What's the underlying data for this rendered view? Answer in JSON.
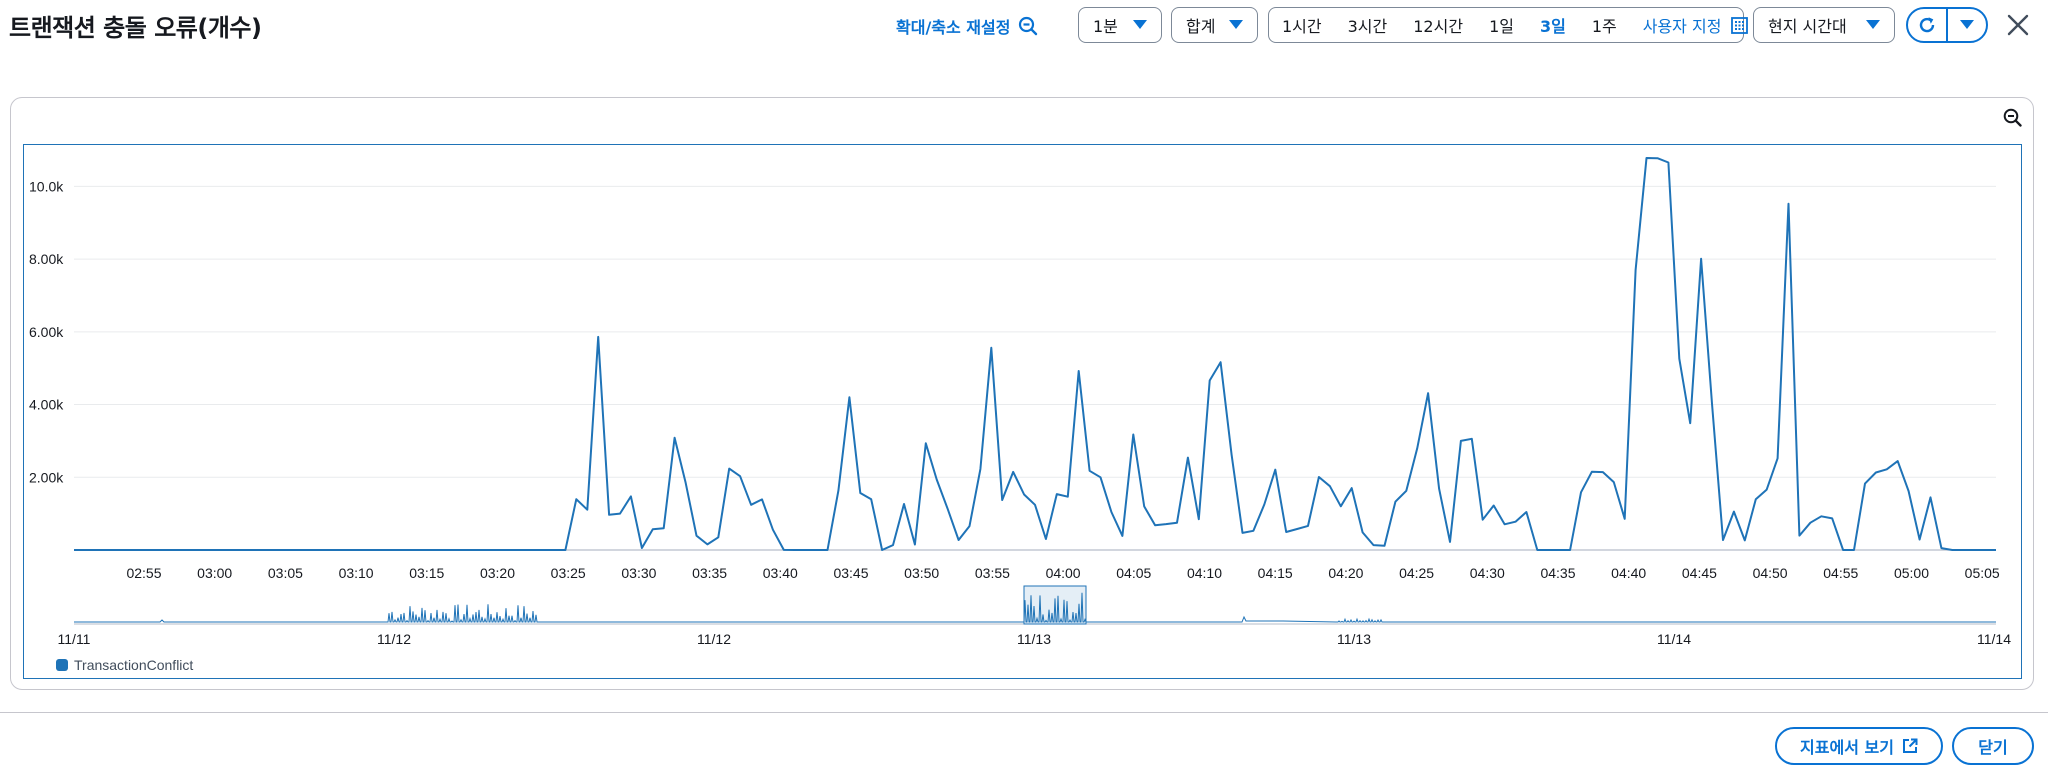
{
  "header": {
    "title": "트랜잭션 충돌 오류(개수)",
    "reset_zoom_label": "확대/축소 재설정",
    "period_select": "1분",
    "statistic_select": "합계",
    "time_ranges": [
      "1시간",
      "3시간",
      "12시간",
      "1일",
      "3일",
      "1주"
    ],
    "active_range": "3일",
    "custom_range_label": "사용자 지정",
    "timezone_select": "현지 시간대"
  },
  "footer": {
    "view_in_metrics_label": "지표에서 보기",
    "close_label": "닫기"
  },
  "colors": {
    "accent": "#0972d3",
    "series": "#1f73b7",
    "grid": "#e9ebed"
  },
  "chart_data": {
    "type": "line",
    "title": "",
    "series": [
      {
        "name": "TransactionConflict",
        "values": [
          0,
          0,
          0,
          0,
          0,
          0,
          0,
          0,
          0,
          0,
          0,
          0,
          0,
          0,
          0,
          0,
          0,
          0,
          0,
          0,
          0,
          0,
          0,
          0,
          0,
          0,
          0,
          0,
          0,
          0,
          0,
          0,
          0,
          0,
          0,
          0,
          0,
          0,
          0,
          0,
          0,
          0,
          0,
          0,
          0,
          0,
          1398,
          1108,
          5860,
          968,
          1001,
          1474,
          56,
          568,
          598,
          3088,
          1868,
          394,
          153,
          348,
          2238,
          2029,
          1242,
          1391,
          558,
          2,
          0,
          0,
          0,
          0,
          1633,
          4200,
          1568,
          1395,
          1,
          135,
          1264,
          150,
          2934,
          1940,
          1136,
          275,
          657,
          2228,
          5560,
          1376,
          2148,
          1526,
          1244,
          302,
          1537,
          1466,
          4923,
          2177,
          2000,
          1046,
          389,
          3176,
          1200,
          682,
          711,
          751,
          2540,
          847,
          4660,
          5165,
          2618,
          470,
          528,
          1251,
          2207,
          495,
          578,
          663,
          2008,
          1754,
          1201,
          1701,
          485,
          136,
          118,
          1329,
          1629,
          2795,
          4313,
          1687,
          224,
          2999,
          3059,
          833,
          1225,
          707,
          778,
          1046,
          0,
          0,
          0,
          0,
          1587,
          2152,
          2142,
          1867,
          858,
          7700,
          10780,
          10775,
          10656,
          5262,
          3488,
          8007,
          3990,
          274,
          1057,
          263,
          1398,
          1660,
          2522,
          9520,
          396,
          750,
          926,
          870,
          0,
          0,
          1827,
          2132,
          2220,
          2445,
          1621,
          290,
          1446,
          52,
          0,
          0,
          0,
          0,
          0
        ]
      }
    ],
    "x_tick_labels": [
      "02:55",
      "03:00",
      "03:05",
      "03:10",
      "03:15",
      "03:20",
      "03:25",
      "03:30",
      "03:35",
      "03:40",
      "03:45",
      "03:50",
      "03:55",
      "04:00",
      "04:05",
      "04:10",
      "04:15",
      "04:20",
      "04:25",
      "04:30",
      "04:35",
      "04:40",
      "04:45",
      "04:50",
      "04:55",
      "05:00",
      "05:05"
    ],
    "y_ticks": [
      2000,
      4000,
      6000,
      8000,
      10000
    ],
    "y_tick_labels": [
      "2.00k",
      "4.00k",
      "6.00k",
      "8.00k",
      "10.0k"
    ],
    "ylim": [
      0,
      11000
    ],
    "grid": true,
    "legend": "bottom-left",
    "navigator": {
      "date_labels": [
        "11/11",
        "11/12",
        "11/12",
        "11/13",
        "11/13",
        "11/14",
        "11/14"
      ]
    }
  }
}
